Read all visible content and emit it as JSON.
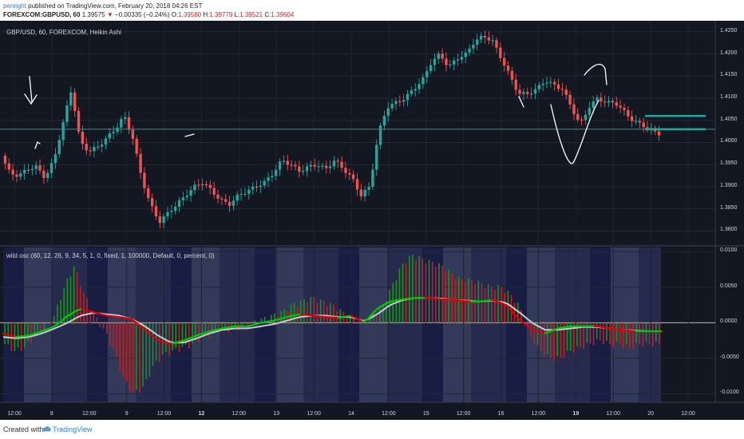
{
  "header": {
    "author": "penright",
    "published_text": " published on TradingView.com, February 20, 2018 04:26 EST",
    "symbol": "FOREXCOM:GBPUSD, 60",
    "last": "1.39575",
    "change_arrow": "▼",
    "change": "−0.00335 (−0.24%)",
    "o_label": "O:",
    "o_value": "1.39580",
    "h_label": "H:",
    "h_value": "1.39779",
    "l_label": "L:",
    "l_value": "1.39521",
    "c_label": "C:",
    "c_value": "1.39604"
  },
  "price_pane": {
    "title": "GBP/USD, 60, FOREXCOM, Heikin Ashi",
    "price_labels": [
      "1.4250",
      "1.4200",
      "1.4150",
      "1.4100",
      "1.4050",
      "1.4000",
      "1.3950",
      "1.3900",
      "1.3850",
      "1.3800"
    ]
  },
  "osc_pane": {
    "title": "wild osc (60, 12, 26, 9, 34, 5, 1, 0, fixed, 1, 100000, Default, 0, percent, 0)",
    "value_labels": [
      "0.0100",
      "0.0050",
      "0.0000",
      "-0.0050",
      "-0.0100"
    ]
  },
  "time_axis": {
    "labels": [
      {
        "text": "12:00",
        "bold": false
      },
      {
        "text": "8",
        "bold": false
      },
      {
        "text": "12:00",
        "bold": false
      },
      {
        "text": "9",
        "bold": false
      },
      {
        "text": "12:00",
        "bold": false
      },
      {
        "text": "12",
        "bold": true
      },
      {
        "text": "12:00",
        "bold": false
      },
      {
        "text": "13",
        "bold": false
      },
      {
        "text": "12:00",
        "bold": false
      },
      {
        "text": "14",
        "bold": false
      },
      {
        "text": "12:00",
        "bold": false
      },
      {
        "text": "15",
        "bold": false
      },
      {
        "text": "12:00",
        "bold": false
      },
      {
        "text": "16",
        "bold": false
      },
      {
        "text": "12:00",
        "bold": false
      },
      {
        "text": "19",
        "bold": true
      },
      {
        "text": "12:00",
        "bold": false
      },
      {
        "text": "20",
        "bold": false
      },
      {
        "text": "12:00",
        "bold": false
      }
    ]
  },
  "footer": {
    "created_with": "Created with",
    "brand": "TradingView"
  },
  "colors": {
    "background": "#131722",
    "bull": "#26a69a",
    "bear": "#ef5350",
    "osc_green": "#00c800",
    "osc_red": "#e00000",
    "signal": "#c8c8d8",
    "accent": "#2f7ed8"
  },
  "chart_data": [
    {
      "type": "candlestick",
      "title": "GBP/USD, 60, FOREXCOM, Heikin Ashi",
      "ylim": [
        1.377,
        1.4275
      ],
      "horizontal_line": 1.403,
      "drawn_levels": [
        1.406,
        1.403
      ],
      "close_path": [
        1.397,
        1.393,
        1.3925,
        1.394,
        1.3945,
        1.392,
        1.396,
        1.404,
        1.412,
        1.4,
        1.398,
        1.399,
        1.401,
        1.403,
        1.406,
        1.401,
        1.392,
        1.386,
        1.382,
        1.384,
        1.386,
        1.388,
        1.39,
        1.391,
        1.389,
        1.387,
        1.386,
        1.388,
        1.389,
        1.39,
        1.391,
        1.393,
        1.396,
        1.395,
        1.3935,
        1.3945,
        1.395,
        1.394,
        1.396,
        1.394,
        1.392,
        1.388,
        1.39,
        1.402,
        1.408,
        1.409,
        1.41,
        1.412,
        1.414,
        1.418,
        1.42,
        1.417,
        1.419,
        1.42,
        1.423,
        1.424,
        1.423,
        1.419,
        1.415,
        1.411,
        1.411,
        1.412,
        1.414,
        1.413,
        1.412,
        1.408,
        1.404,
        1.408,
        1.41,
        1.409,
        1.409,
        1.407,
        1.405,
        1.404,
        1.403,
        1.402
      ]
    },
    {
      "type": "histogram+line",
      "title": "wild osc (60, 12, 26, 9, 34, 5, 1, 0, fixed, 1, 100000, Default, 0, percent, 0)",
      "ylim": [
        -0.0112,
        0.0106
      ],
      "histogram": [
        -0.003,
        -0.004,
        -0.0035,
        -0.002,
        -0.001,
        0.001,
        0.005,
        0.008,
        0.004,
        0.001,
        -0.001,
        -0.004,
        -0.008,
        -0.01,
        -0.009,
        -0.006,
        -0.0045,
        -0.004,
        -0.0035,
        -0.003,
        -0.002,
        -0.0015,
        -0.001,
        -0.001,
        -0.0005,
        0.0,
        0.0005,
        0.001,
        0.0015,
        0.0025,
        0.003,
        0.0035,
        0.003,
        0.0025,
        0.0015,
        0.0005,
        0.0,
        0.001,
        0.002,
        0.005,
        0.008,
        0.0095,
        0.009,
        0.0085,
        0.008,
        0.007,
        0.006,
        0.006,
        0.0055,
        0.005,
        0.005,
        0.004,
        0.002,
        -0.002,
        -0.004,
        -0.005,
        -0.005,
        -0.004,
        -0.0035,
        -0.003,
        -0.0025,
        -0.003,
        -0.003,
        -0.0035,
        -0.003,
        -0.003,
        -0.003
      ],
      "series": [
        {
          "values": [
            -0.0015,
            -0.002,
            -0.0018,
            -0.0012,
            -0.0005,
            0.001,
            0.002,
            0.0015,
            0.001,
            0.0008,
            0.0005,
            -0.001,
            -0.0025,
            -0.003,
            -0.0025,
            -0.0018,
            -0.0012,
            -0.0008,
            -0.0005,
            -0.0005,
            0.0,
            0.0003,
            0.0008,
            0.0012,
            0.001,
            0.0008,
            0.0007,
            0.001,
            0.0,
            0.002,
            0.003,
            0.0033,
            0.0035,
            0.0035,
            0.0033,
            0.0032,
            0.003,
            0.003,
            0.0032,
            0.0025,
            0.0005,
            -0.001,
            -0.0015,
            -0.0008,
            -0.0005,
            -0.0005,
            -0.0005,
            -0.0008,
            -0.001,
            -0.0012,
            -0.0012,
            -0.0012
          ]
        },
        {
          "values": [
            -0.002,
            -0.0022,
            -0.002,
            -0.0015,
            -0.0008,
            0.0,
            0.001,
            0.0014,
            0.0012,
            0.001,
            0.0005,
            -0.0005,
            -0.0018,
            -0.0028,
            -0.0028,
            -0.0022,
            -0.0015,
            -0.001,
            -0.0008,
            -0.0008,
            -0.0005,
            -0.0002,
            0.0003,
            0.0008,
            0.001,
            0.001,
            0.0008,
            0.0008,
            0.0002,
            0.0012,
            0.0025,
            0.0032,
            0.0035,
            0.0035,
            0.0034,
            0.0032,
            0.0031,
            0.003,
            0.0031,
            0.0028,
            0.0015,
            0.0,
            -0.001,
            -0.001,
            -0.0008,
            -0.0006,
            -0.0006,
            -0.0008,
            -0.001,
            -0.0011,
            -0.0012,
            -0.0012
          ]
        }
      ]
    }
  ]
}
